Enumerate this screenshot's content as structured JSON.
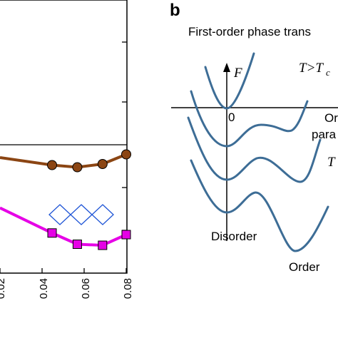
{
  "panel_b_letter": "b",
  "chart_data": [
    {
      "type": "line",
      "title": "",
      "xlabel": "",
      "ylabel": "",
      "xlim": [
        0.0,
        0.08
      ],
      "x_ticks": [
        "0.02",
        "0.04",
        "0.06",
        "0.08"
      ],
      "series": [
        {
          "color": "#8b4513",
          "marker": "circle",
          "x": [
            0.0,
            0.033,
            0.049,
            0.065,
            0.08
          ],
          "y": [
            0.56,
            0.42,
            0.38,
            0.44,
            0.62
          ]
        },
        {
          "color": "#e600e6",
          "marker": "square",
          "x": [
            0.0,
            0.033,
            0.049,
            0.065,
            0.08
          ],
          "y": [
            -0.38,
            -0.85,
            -1.06,
            -1.08,
            -0.88
          ]
        }
      ],
      "hline_y": 0.75,
      "inset_icon": "blue-diamond-lattice-icon"
    },
    {
      "type": "diagram",
      "title": "First-order phase trans",
      "axis_label_y": "F",
      "origin_label": "0",
      "curve_labels": [
        "T>T",
        "c",
        "Or",
        "para",
        "T"
      ],
      "state_labels": [
        "Disorder",
        "Order"
      ],
      "curve_color": "#3d6d96"
    }
  ]
}
